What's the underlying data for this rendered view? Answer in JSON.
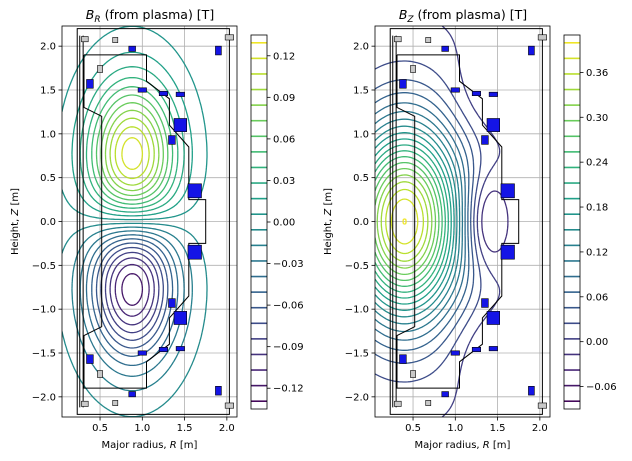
{
  "chart_data": [
    {
      "type": "contour",
      "title": "$B_R$ (from plasma) [T]",
      "title_display": {
        "sym": "B",
        "sub": "R",
        "rest": " (from plasma) [T]"
      },
      "xlabel": "Major radius, R [m]",
      "xlabel_display": {
        "pre": "Major radius, ",
        "var": "R",
        "post": " [m]"
      },
      "ylabel": "Height, Z [m]",
      "ylabel_display": {
        "pre": "Height, ",
        "var": "Z",
        "post": " [m]"
      },
      "xlim": [
        0.05,
        2.12
      ],
      "ylim": [
        -2.23,
        2.23
      ],
      "xticks": [
        "0.5",
        "1.0",
        "1.5",
        "2.0"
      ],
      "xtick_values": [
        0.5,
        1.0,
        1.5,
        2.0
      ],
      "yticks": [
        "2.0",
        "1.5",
        "1.0",
        "0.5",
        "0.0",
        "−0.5",
        "−1.0",
        "−1.5",
        "−2.0"
      ],
      "ytick_values": [
        2.0,
        1.5,
        1.0,
        0.5,
        0.0,
        -0.5,
        -1.0,
        -1.5,
        -2.0
      ],
      "grid": true,
      "colormap": "viridis",
      "colorbar_range": [
        -0.135,
        0.135
      ],
      "colorbar_ticks": [
        "0.12",
        "0.09",
        "0.06",
        "0.03",
        "0.00",
        "−0.03",
        "−0.06",
        "−0.09",
        "−0.12"
      ],
      "colorbar_tick_values": [
        0.12,
        0.09,
        0.06,
        0.03,
        0.0,
        -0.03,
        -0.06,
        -0.09,
        -0.12
      ],
      "field": {
        "kind": "dipole_lobes",
        "centers": [
          {
            "R": 0.88,
            "Z": 0.68,
            "amp": 0.135
          },
          {
            "R": 0.88,
            "Z": -0.68,
            "amp": -0.135
          }
        ]
      }
    },
    {
      "type": "contour",
      "title": "$B_Z$ (from plasma) [T]",
      "title_display": {
        "sym": "B",
        "sub": "Z",
        "rest": " (from plasma) [T]"
      },
      "xlabel": "Major radius, R [m]",
      "xlabel_display": {
        "pre": "Major radius, ",
        "var": "R",
        "post": " [m]"
      },
      "ylabel": "Height, Z [m]",
      "ylabel_display": {
        "pre": "Height, ",
        "var": "Z",
        "post": " [m]"
      },
      "xlim": [
        0.05,
        2.12
      ],
      "ylim": [
        -2.23,
        2.23
      ],
      "xticks": [
        "0.5",
        "1.0",
        "1.5",
        "2.0"
      ],
      "xtick_values": [
        0.5,
        1.0,
        1.5,
        2.0
      ],
      "yticks": [
        "2.0",
        "1.5",
        "1.0",
        "0.5",
        "0.0",
        "−0.5",
        "−1.0",
        "−1.5",
        "−2.0"
      ],
      "ytick_values": [
        2.0,
        1.5,
        1.0,
        0.5,
        0.0,
        -0.5,
        -1.0,
        -1.5,
        -2.0
      ],
      "grid": true,
      "colormap": "viridis",
      "colorbar_range": [
        -0.09,
        0.41
      ],
      "colorbar_ticks": [
        "0.36",
        "0.30",
        "0.24",
        "0.18",
        "0.12",
        "0.06",
        "0.00",
        "−0.06"
      ],
      "colorbar_tick_values": [
        0.36,
        0.3,
        0.24,
        0.18,
        0.12,
        0.06,
        0.0,
        -0.06
      ],
      "field": {
        "kind": "central_peak",
        "peak": {
          "R": 0.4,
          "Z": 0.0,
          "amp": 0.4
        },
        "min": {
          "R": 1.35,
          "Z": 0.0,
          "amp": -0.08
        }
      }
    }
  ]
}
